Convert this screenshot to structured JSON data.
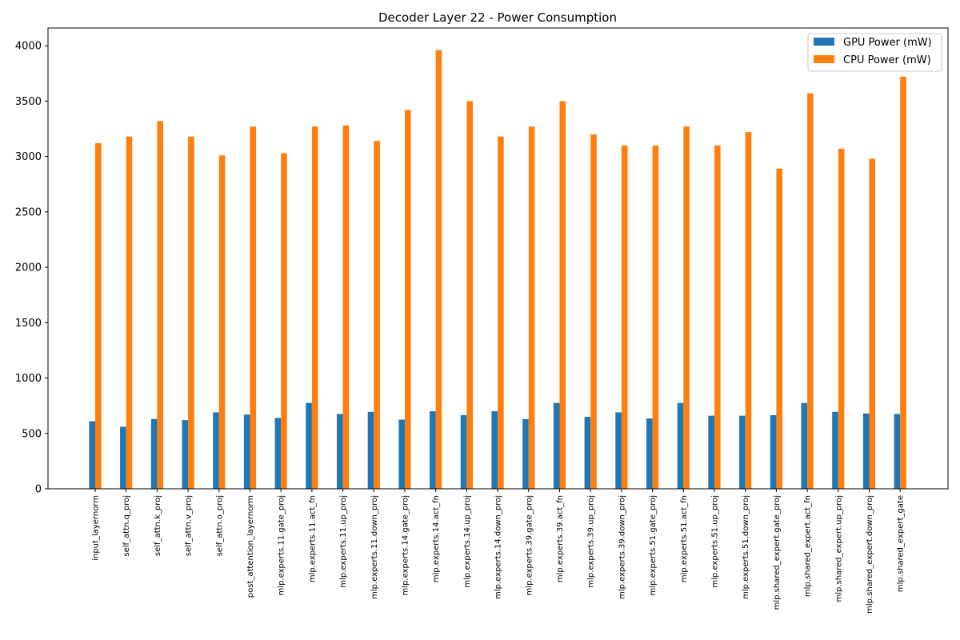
{
  "chart_data": {
    "type": "bar",
    "title": "Decoder Layer 22 - Power Consumption",
    "xlabel": "",
    "ylabel": "",
    "ylim": [
      0,
      4160
    ],
    "yticks": [
      0,
      500,
      1000,
      1500,
      2000,
      2500,
      3000,
      3500,
      4000
    ],
    "legend_position": "top-right",
    "grid": false,
    "categories": [
      "input_layernorm",
      "self_attn.q_proj",
      "self_attn.k_proj",
      "self_attn.v_proj",
      "self_attn.o_proj",
      "post_attention_layernorm",
      "mlp.experts.11.gate_proj",
      "mlp.experts.11.act_fn",
      "mlp.experts.11.up_proj",
      "mlp.experts.11.down_proj",
      "mlp.experts.14.gate_proj",
      "mlp.experts.14.act_fn",
      "mlp.experts.14.up_proj",
      "mlp.experts.14.down_proj",
      "mlp.experts.39.gate_proj",
      "mlp.experts.39.act_fn",
      "mlp.experts.39.up_proj",
      "mlp.experts.39.down_proj",
      "mlp.experts.51.gate_proj",
      "mlp.experts.51.act_fn",
      "mlp.experts.51.up_proj",
      "mlp.experts.51.down_proj",
      "mlp.shared_expert.gate_proj",
      "mlp.shared_expert.act_fn",
      "mlp.shared_expert.up_proj",
      "mlp.shared_expert.down_proj",
      "mlp.shared_expert_gate"
    ],
    "series": [
      {
        "name": "GPU Power (mW)",
        "color": "#1f77b4",
        "values": [
          610,
          560,
          630,
          620,
          690,
          670,
          640,
          775,
          675,
          695,
          625,
          700,
          665,
          700,
          630,
          775,
          650,
          690,
          635,
          775,
          660,
          660,
          665,
          775,
          695,
          680,
          675
        ]
      },
      {
        "name": "CPU Power (mW)",
        "color": "#ff7f0e",
        "values": [
          3120,
          3180,
          3320,
          3180,
          3010,
          3270,
          3030,
          3270,
          3280,
          3140,
          3420,
          3960,
          3500,
          3180,
          3270,
          3500,
          3200,
          3100,
          3100,
          3270,
          3100,
          3220,
          2890,
          3570,
          3070,
          2980,
          3720
        ]
      }
    ]
  }
}
